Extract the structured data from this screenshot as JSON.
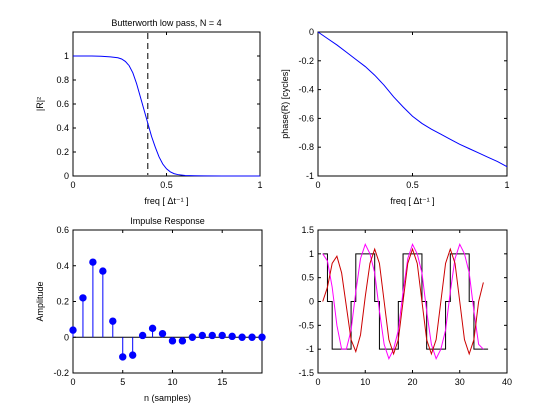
{
  "colors": {
    "blue": "#0000ff",
    "red": "#cc0000",
    "magenta": "#ff00ff",
    "black": "#000000"
  },
  "chart_data": [
    {
      "type": "line",
      "title": "Butterworth low pass, N = 4",
      "xlabel": "freq [ Δt⁻¹ ]",
      "ylabel": "|R|²",
      "xlim": [
        0,
        1
      ],
      "ylim": [
        0,
        1.2
      ],
      "xticks": [
        0,
        0.5,
        1
      ],
      "xtick_labels": [
        "0",
        "0.5",
        "1"
      ],
      "yticks": [
        0,
        0.2,
        0.4,
        0.6,
        0.8,
        1
      ],
      "ytick_labels": [
        "0",
        "0.2",
        "0.4",
        "0.6",
        "0.8",
        "1"
      ],
      "cutoff": 0.4,
      "series": [
        {
          "color": "blue",
          "x": [
            0,
            0.05,
            0.1,
            0.15,
            0.2,
            0.24,
            0.26,
            0.28,
            0.3,
            0.32,
            0.34,
            0.36,
            0.38,
            0.4,
            0.42,
            0.44,
            0.46,
            0.48,
            0.5,
            0.52,
            0.54,
            0.56,
            0.6,
            0.65,
            0.7,
            0.8,
            0.9,
            1.0
          ],
          "y": [
            1,
            1,
            1,
            0.998,
            0.993,
            0.985,
            0.975,
            0.955,
            0.92,
            0.86,
            0.77,
            0.66,
            0.55,
            0.44,
            0.33,
            0.24,
            0.16,
            0.1,
            0.06,
            0.035,
            0.02,
            0.012,
            0.004,
            0.002,
            0.001,
            0,
            0,
            0
          ]
        }
      ]
    },
    {
      "type": "line",
      "title": "",
      "xlabel": "freq [ Δt⁻¹ ]",
      "ylabel": "phase(R) [cycles]",
      "xlim": [
        0,
        1
      ],
      "ylim": [
        -1,
        0
      ],
      "xticks": [
        0,
        0.5,
        1
      ],
      "xtick_labels": [
        "0",
        "0.5",
        "1"
      ],
      "yticks": [
        0,
        -0.2,
        -0.4,
        -0.6,
        -0.8,
        -1
      ],
      "ytick_labels": [
        "0",
        "-0.2",
        "-0.4",
        "-0.6",
        "-0.8",
        "-1"
      ],
      "series": [
        {
          "color": "blue",
          "x": [
            0,
            0.05,
            0.1,
            0.15,
            0.2,
            0.25,
            0.3,
            0.35,
            0.4,
            0.45,
            0.5,
            0.55,
            0.6,
            0.65,
            0.7,
            0.75,
            0.8,
            0.85,
            0.9,
            0.95,
            1.0
          ],
          "y": [
            0,
            -0.045,
            -0.09,
            -0.14,
            -0.19,
            -0.24,
            -0.3,
            -0.37,
            -0.45,
            -0.52,
            -0.585,
            -0.635,
            -0.675,
            -0.71,
            -0.745,
            -0.78,
            -0.81,
            -0.84,
            -0.87,
            -0.9,
            -0.935
          ]
        }
      ]
    },
    {
      "type": "stem",
      "title": "Impulse Response",
      "xlabel": "n (samples)",
      "ylabel": "Amplitude",
      "xlim": [
        0,
        19
      ],
      "ylim": [
        -0.2,
        0.6
      ],
      "xticks": [
        0,
        5,
        10,
        15
      ],
      "xtick_labels": [
        "0",
        "5",
        "10",
        "15"
      ],
      "yticks": [
        -0.2,
        0,
        0.2,
        0.4,
        0.6
      ],
      "ytick_labels": [
        "-0.2",
        "0",
        "0.2",
        "0.4",
        "0.6"
      ],
      "series": [
        {
          "color": "blue",
          "x": [
            0,
            1,
            2,
            3,
            4,
            5,
            6,
            7,
            8,
            9,
            10,
            11,
            12,
            13,
            14,
            15,
            16,
            17,
            18,
            19
          ],
          "y": [
            0.04,
            0.22,
            0.42,
            0.37,
            0.09,
            -0.11,
            -0.1,
            0.01,
            0.05,
            0.02,
            -0.02,
            -0.02,
            0,
            0.01,
            0.01,
            0.01,
            0.005,
            0,
            0,
            0
          ]
        }
      ]
    },
    {
      "type": "line",
      "title": "",
      "xlabel": "",
      "ylabel": "",
      "xlim": [
        0,
        40
      ],
      "ylim": [
        -1.5,
        1.5
      ],
      "xticks": [
        0,
        10,
        20,
        30,
        40
      ],
      "xtick_labels": [
        "0",
        "10",
        "20",
        "30",
        "40"
      ],
      "yticks": [
        1.5,
        1,
        0.5,
        0,
        -0.5,
        -1,
        -1.5
      ],
      "ytick_labels": [
        "1.5",
        "1",
        "0.5",
        "0",
        "-0.5",
        "-1",
        "-1.5"
      ],
      "series": [
        {
          "color": "black",
          "step": true,
          "x": [
            1,
            2,
            3,
            4,
            5,
            6,
            7,
            8,
            9,
            10,
            11,
            12,
            13,
            14,
            15,
            16,
            17,
            18,
            19,
            20,
            21,
            22,
            23,
            24,
            25,
            26,
            27,
            28,
            29,
            30,
            31,
            32,
            33,
            34,
            35
          ],
          "y": [
            1,
            1,
            0,
            -1,
            -1,
            -1,
            -1,
            0,
            1,
            1,
            1,
            1,
            0,
            -1,
            -1,
            -1,
            -1,
            0,
            1,
            1,
            1,
            1,
            0,
            -1,
            -1,
            -1,
            -1,
            0,
            1,
            1,
            1,
            1,
            0,
            -1,
            -1
          ]
        },
        {
          "color": "magenta",
          "x": [
            1,
            2,
            3,
            4,
            5,
            6,
            7,
            8,
            9,
            10,
            11,
            12,
            13,
            14,
            15,
            16,
            17,
            18,
            19,
            20,
            21,
            22,
            23,
            24,
            25,
            26,
            27,
            28,
            29,
            30,
            31,
            32,
            33,
            34,
            35
          ],
          "y": [
            1.0,
            0.85,
            0.3,
            -0.5,
            -1.0,
            -1.0,
            -0.6,
            0.2,
            0.9,
            1.2,
            1.0,
            0.6,
            -0.2,
            -0.9,
            -1.2,
            -1.0,
            -0.6,
            0.2,
            0.9,
            1.2,
            1.0,
            0.6,
            -0.2,
            -0.9,
            -1.2,
            -1.0,
            -0.6,
            0.2,
            0.9,
            1.2,
            1.0,
            0.6,
            -0.2,
            -0.9,
            -1.0
          ]
        },
        {
          "color": "red",
          "x": [
            1,
            2,
            3,
            4,
            5,
            6,
            7,
            8,
            9,
            10,
            11,
            12,
            13,
            14,
            15,
            16,
            17,
            18,
            19,
            20,
            21,
            22,
            23,
            24,
            25,
            26,
            27,
            28,
            29,
            30,
            31,
            32,
            33,
            34,
            35
          ],
          "y": [
            0.0,
            0.3,
            0.8,
            0.95,
            0.6,
            -0.1,
            -0.8,
            -1.05,
            -0.7,
            0.1,
            0.8,
            1.1,
            0.8,
            0.0,
            -0.8,
            -1.1,
            -0.8,
            0.0,
            0.8,
            1.1,
            0.8,
            0.0,
            -0.8,
            -1.1,
            -0.8,
            0.0,
            0.8,
            1.1,
            0.8,
            0.0,
            -0.8,
            -1.1,
            -0.8,
            0.0,
            0.4
          ]
        }
      ]
    }
  ]
}
